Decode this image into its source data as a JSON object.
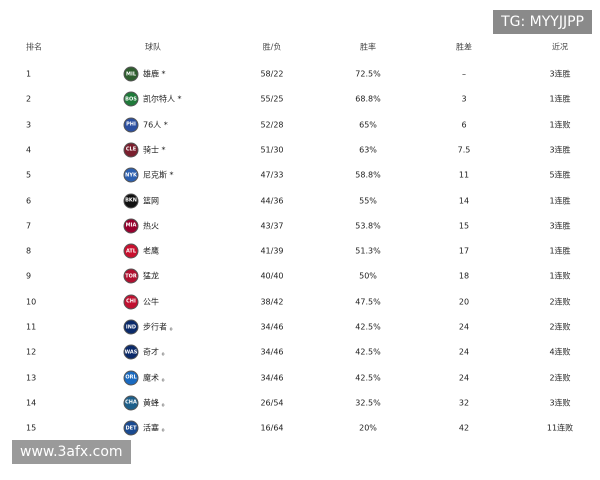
{
  "watermarks": {
    "top_right": "TG: MYYJJPP",
    "bottom_left": "www.3afx.com"
  },
  "table": {
    "headers": [
      "排名",
      "球队",
      "胜/负",
      "胜率",
      "胜差",
      "近况"
    ],
    "logos": [
      "MIL",
      "BOS",
      "PHI",
      "CLE",
      "NYK",
      "BKN",
      "MIA",
      "ATL",
      "TOR",
      "CHI",
      "IND",
      "WAS",
      "ORL",
      "CHA",
      "DET"
    ],
    "rows": [
      [
        "1",
        "雄鹿 *",
        "58/22",
        "72.5%",
        "–",
        "3连胜"
      ],
      [
        "2",
        "凯尔特人 *",
        "55/25",
        "68.8%",
        "3",
        "1连胜"
      ],
      [
        "3",
        "76人 *",
        "52/28",
        "65%",
        "6",
        "1连败"
      ],
      [
        "4",
        "骑士 *",
        "51/30",
        "63%",
        "7.5",
        "3连胜"
      ],
      [
        "5",
        "尼克斯 *",
        "47/33",
        "58.8%",
        "11",
        "5连胜"
      ],
      [
        "6",
        "篮网",
        "44/36",
        "55%",
        "14",
        "1连胜"
      ],
      [
        "7",
        "热火",
        "43/37",
        "53.8%",
        "15",
        "3连胜"
      ],
      [
        "8",
        "老鹰",
        "41/39",
        "51.3%",
        "17",
        "1连胜"
      ],
      [
        "9",
        "猛龙",
        "40/40",
        "50%",
        "18",
        "1连败"
      ],
      [
        "10",
        "公牛",
        "38/42",
        "47.5%",
        "20",
        "2连败"
      ],
      [
        "11",
        "步行者 。",
        "34/46",
        "42.5%",
        "24",
        "2连败"
      ],
      [
        "12",
        "奇才 。",
        "34/46",
        "42.5%",
        "24",
        "4连败"
      ],
      [
        "13",
        "魔术 。",
        "34/46",
        "42.5%",
        "24",
        "2连败"
      ],
      [
        "14",
        "黄蜂 。",
        "26/54",
        "32.5%",
        "32",
        "3连败"
      ],
      [
        "15",
        "活塞 。",
        "16/64",
        "20%",
        "42",
        "11连败"
      ]
    ]
  }
}
